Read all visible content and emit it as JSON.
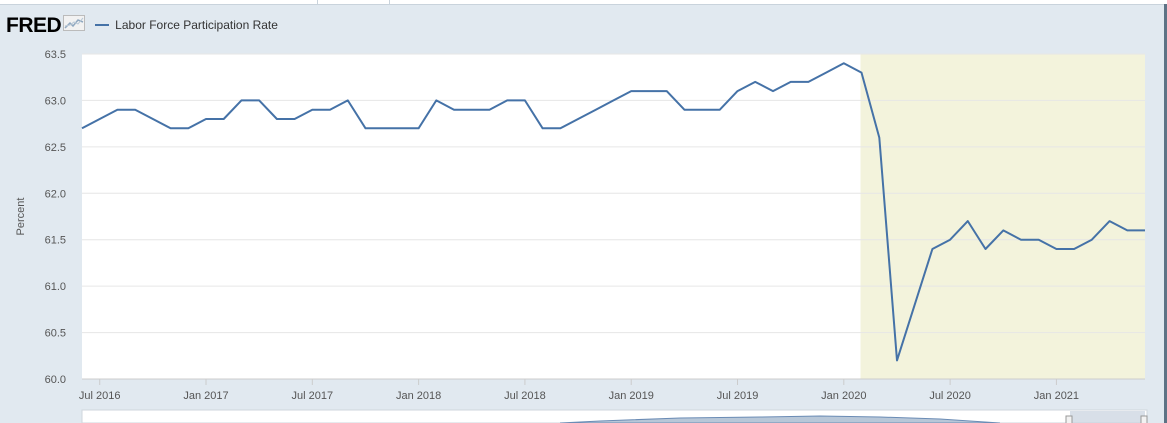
{
  "header": {
    "logo_text": "FRED",
    "legend_label": "Labor Force Participation Rate"
  },
  "colors": {
    "series": "#4572a7",
    "recession_shading": "#f3f3dc",
    "plot_background": "#ffffff",
    "page_background": "#e1e9f0",
    "gridline": "#e6e6e6"
  },
  "chart_data": {
    "type": "line",
    "title": "",
    "xlabel": "",
    "ylabel": "Percent",
    "ylim": [
      60.0,
      63.5
    ],
    "yticks": [
      "60.0",
      "60.5",
      "61.0",
      "61.5",
      "62.0",
      "62.5",
      "63.0",
      "63.5"
    ],
    "xticks": [
      {
        "date": "2016-07-01",
        "label": "Jul 2016"
      },
      {
        "date": "2017-01-01",
        "label": "Jan 2017"
      },
      {
        "date": "2017-07-01",
        "label": "Jul 2017"
      },
      {
        "date": "2018-01-01",
        "label": "Jan 2018"
      },
      {
        "date": "2018-07-01",
        "label": "Jul 2018"
      },
      {
        "date": "2019-01-01",
        "label": "Jan 2019"
      },
      {
        "date": "2019-07-01",
        "label": "Jul 2019"
      },
      {
        "date": "2020-01-01",
        "label": "Jan 2020"
      },
      {
        "date": "2020-07-01",
        "label": "Jul 2020"
      },
      {
        "date": "2021-01-01",
        "label": "Jan 2021"
      }
    ],
    "grid": true,
    "recession": {
      "start": "2020-02-01",
      "end": "2021-06-01"
    },
    "series": [
      {
        "name": "Labor Force Participation Rate",
        "color": "#4572a7",
        "x": [
          "2016-06",
          "2016-07",
          "2016-08",
          "2016-09",
          "2016-10",
          "2016-11",
          "2016-12",
          "2017-01",
          "2017-02",
          "2017-03",
          "2017-04",
          "2017-05",
          "2017-06",
          "2017-07",
          "2017-08",
          "2017-09",
          "2017-10",
          "2017-11",
          "2017-12",
          "2018-01",
          "2018-02",
          "2018-03",
          "2018-04",
          "2018-05",
          "2018-06",
          "2018-07",
          "2018-08",
          "2018-09",
          "2018-10",
          "2018-11",
          "2018-12",
          "2019-01",
          "2019-02",
          "2019-03",
          "2019-04",
          "2019-05",
          "2019-06",
          "2019-07",
          "2019-08",
          "2019-09",
          "2019-10",
          "2019-11",
          "2019-12",
          "2020-01",
          "2020-02",
          "2020-03",
          "2020-04",
          "2020-05",
          "2020-06",
          "2020-07",
          "2020-08",
          "2020-09",
          "2020-10",
          "2020-11",
          "2020-12",
          "2021-01",
          "2021-02",
          "2021-03",
          "2021-04",
          "2021-05",
          "2021-06"
        ],
        "values": [
          62.7,
          62.8,
          62.9,
          62.9,
          62.8,
          62.7,
          62.7,
          62.8,
          62.8,
          63.0,
          63.0,
          62.8,
          62.8,
          62.9,
          62.9,
          63.0,
          62.7,
          62.7,
          62.7,
          62.7,
          63.0,
          62.9,
          62.9,
          62.9,
          63.0,
          63.0,
          62.7,
          62.7,
          62.8,
          62.9,
          63.0,
          63.1,
          63.1,
          63.1,
          62.9,
          62.9,
          62.9,
          63.1,
          63.2,
          63.1,
          63.2,
          63.2,
          63.3,
          63.4,
          63.3,
          62.6,
          60.2,
          60.8,
          61.4,
          61.5,
          61.7,
          61.4,
          61.6,
          61.5,
          61.5,
          61.4,
          61.4,
          61.5,
          61.7,
          61.6,
          61.6
        ]
      }
    ]
  }
}
